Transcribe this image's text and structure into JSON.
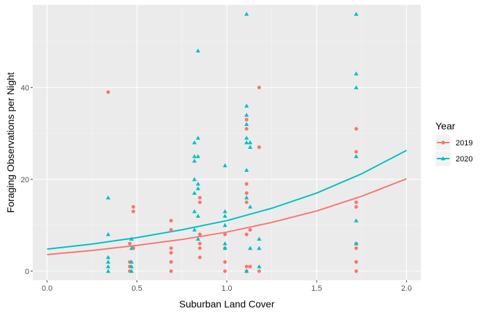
{
  "chart_data": {
    "type": "scatter",
    "xlabel": "Suburban Land Cover",
    "ylabel": "Foraging Observations per Night",
    "xlim": [
      -0.08,
      2.08
    ],
    "ylim": [
      -2,
      58
    ],
    "x_ticks": [
      0.0,
      0.5,
      1.0,
      1.5,
      2.0
    ],
    "x_tick_labels": [
      "0.0",
      "0.5",
      "1.0",
      "1.5",
      "2.0"
    ],
    "y_ticks": [
      0,
      20,
      40
    ],
    "y_tick_labels": [
      "0",
      "20",
      "40"
    ],
    "grid": true,
    "legend": {
      "title": "Year",
      "position": "right"
    },
    "series": [
      {
        "name": "2019",
        "color": "#F8766D",
        "marker": "circle",
        "points": [
          [
            0.34,
            39
          ],
          [
            0.46,
            6
          ],
          [
            0.46,
            2
          ],
          [
            0.46,
            1
          ],
          [
            0.46,
            0
          ],
          [
            0.48,
            14
          ],
          [
            0.48,
            13
          ],
          [
            0.48,
            5
          ],
          [
            0.69,
            11
          ],
          [
            0.69,
            9
          ],
          [
            0.69,
            5
          ],
          [
            0.69,
            4
          ],
          [
            0.69,
            2
          ],
          [
            0.69,
            0
          ],
          [
            0.85,
            16
          ],
          [
            0.85,
            15
          ],
          [
            0.85,
            8
          ],
          [
            0.85,
            6
          ],
          [
            0.85,
            5
          ],
          [
            0.85,
            3
          ],
          [
            0.99,
            8
          ],
          [
            0.99,
            5
          ],
          [
            0.99,
            2
          ],
          [
            0.99,
            0
          ],
          [
            1.11,
            33
          ],
          [
            1.11,
            31
          ],
          [
            1.11,
            19
          ],
          [
            1.11,
            17
          ],
          [
            1.11,
            15
          ],
          [
            1.11,
            8
          ],
          [
            1.11,
            1
          ],
          [
            1.11,
            0
          ],
          [
            1.13,
            9
          ],
          [
            1.13,
            1
          ],
          [
            1.18,
            40
          ],
          [
            1.18,
            27
          ],
          [
            1.18,
            0
          ],
          [
            1.72,
            31
          ],
          [
            1.72,
            26
          ],
          [
            1.72,
            15
          ],
          [
            1.72,
            14
          ],
          [
            1.72,
            6
          ],
          [
            1.72,
            5
          ],
          [
            1.72,
            2
          ],
          [
            1.72,
            0
          ]
        ],
        "trend": [
          [
            0.0,
            3.6
          ],
          [
            0.25,
            4.5
          ],
          [
            0.5,
            5.6
          ],
          [
            0.75,
            6.9
          ],
          [
            1.0,
            8.5
          ],
          [
            1.25,
            10.6
          ],
          [
            1.5,
            13.1
          ],
          [
            1.75,
            16.3
          ],
          [
            2.0,
            20.1
          ]
        ]
      },
      {
        "name": "2020",
        "color": "#00BFC4",
        "marker": "triangle",
        "points": [
          [
            0.34,
            16
          ],
          [
            0.34,
            8
          ],
          [
            0.34,
            3
          ],
          [
            0.34,
            2
          ],
          [
            0.34,
            1
          ],
          [
            0.34,
            0
          ],
          [
            0.47,
            7
          ],
          [
            0.47,
            5
          ],
          [
            0.47,
            2
          ],
          [
            0.47,
            1
          ],
          [
            0.47,
            0
          ],
          [
            0.82,
            28
          ],
          [
            0.82,
            25
          ],
          [
            0.82,
            24
          ],
          [
            0.82,
            20
          ],
          [
            0.82,
            17
          ],
          [
            0.82,
            13
          ],
          [
            0.82,
            9
          ],
          [
            0.84,
            48
          ],
          [
            0.84,
            29
          ],
          [
            0.84,
            25
          ],
          [
            0.84,
            19
          ],
          [
            0.84,
            18
          ],
          [
            0.84,
            12
          ],
          [
            0.84,
            7
          ],
          [
            0.99,
            23
          ],
          [
            0.99,
            13
          ],
          [
            0.99,
            12
          ],
          [
            0.99,
            10
          ],
          [
            0.99,
            6
          ],
          [
            0.99,
            5
          ],
          [
            1.11,
            56
          ],
          [
            1.11,
            36
          ],
          [
            1.11,
            34
          ],
          [
            1.11,
            32
          ],
          [
            1.11,
            29
          ],
          [
            1.11,
            28
          ],
          [
            1.11,
            22
          ],
          [
            1.11,
            16
          ],
          [
            1.11,
            0
          ],
          [
            1.13,
            28
          ],
          [
            1.13,
            27
          ],
          [
            1.13,
            14
          ],
          [
            1.13,
            5
          ],
          [
            1.18,
            7
          ],
          [
            1.18,
            5
          ],
          [
            1.18,
            1
          ],
          [
            1.72,
            56
          ],
          [
            1.72,
            43
          ],
          [
            1.72,
            40
          ],
          [
            1.72,
            25
          ],
          [
            1.72,
            11
          ],
          [
            1.72,
            6
          ]
        ],
        "trend": [
          [
            0.0,
            4.8
          ],
          [
            0.25,
            5.9
          ],
          [
            0.5,
            7.3
          ],
          [
            0.75,
            9.0
          ],
          [
            1.0,
            11.0
          ],
          [
            1.25,
            13.7
          ],
          [
            1.5,
            17.0
          ],
          [
            1.75,
            21.2
          ],
          [
            2.0,
            26.3
          ]
        ]
      }
    ]
  }
}
